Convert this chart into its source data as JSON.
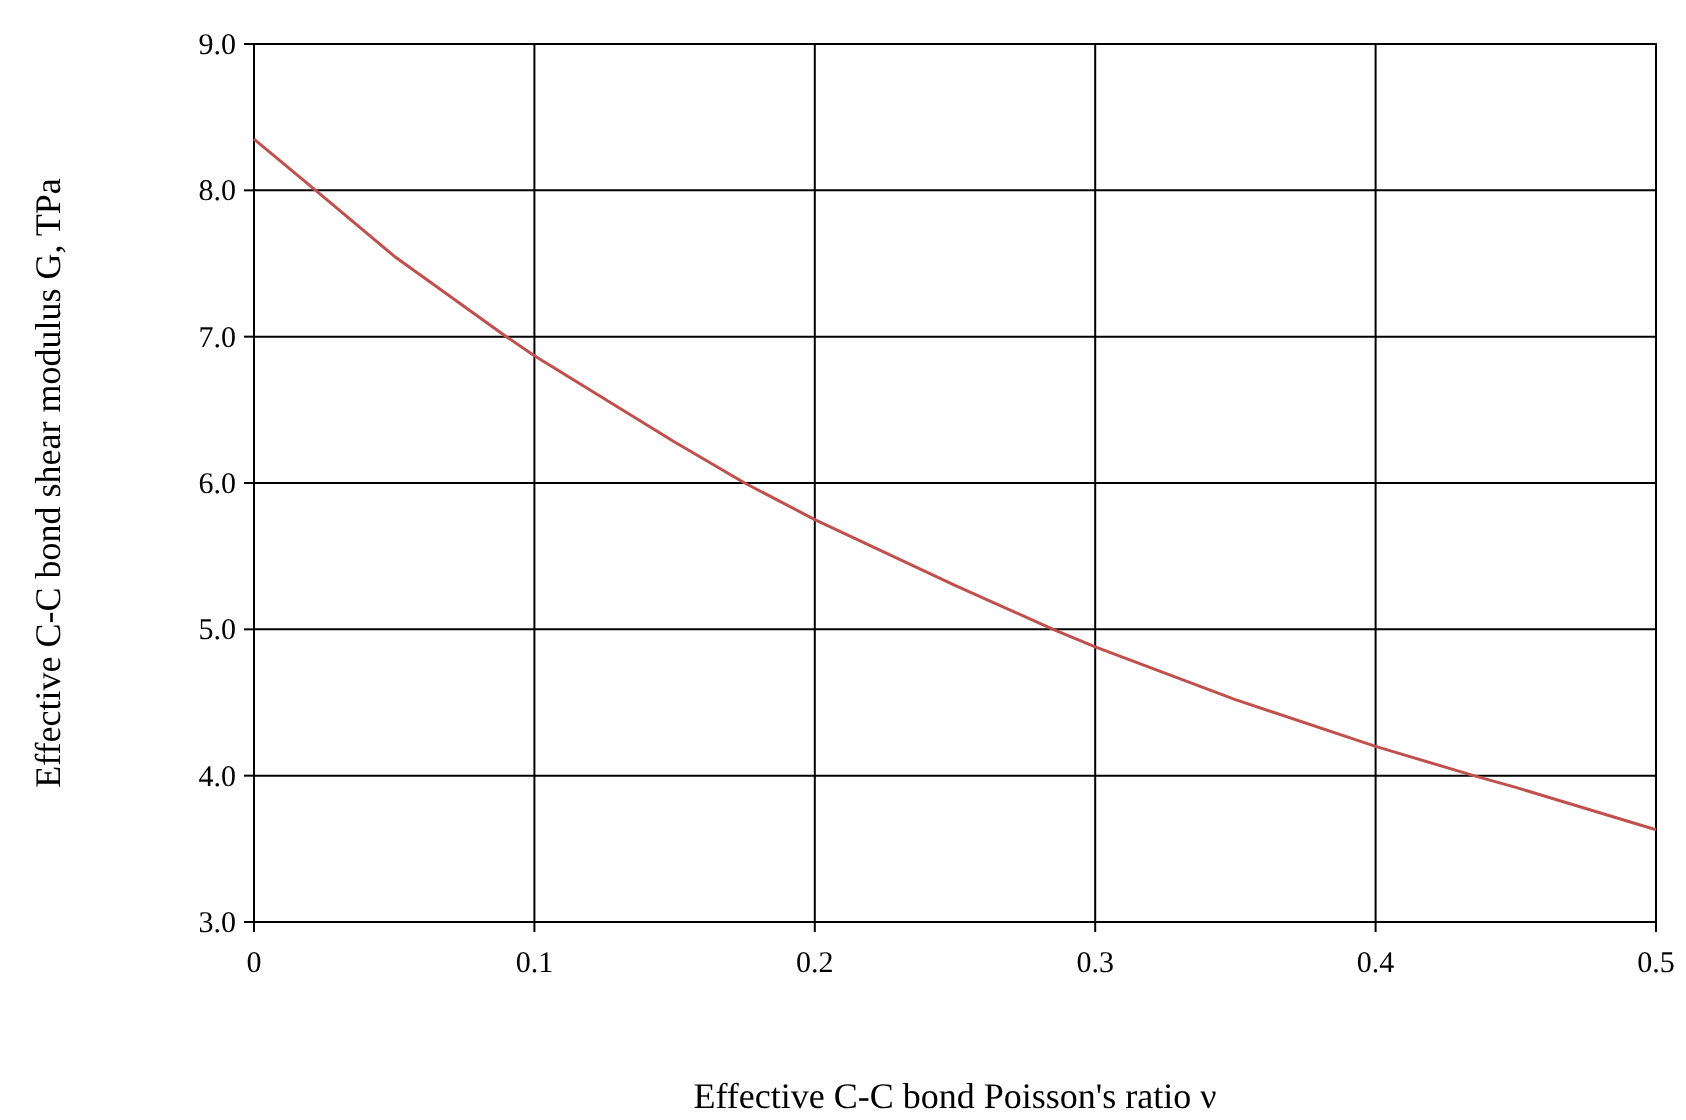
{
  "chart_data": {
    "type": "line",
    "xlabel": "Effective C-C bond Poisson's ratio ν",
    "ylabel": "Effective C-C bond shear modulus G, TPa",
    "x": [
      0,
      0.022,
      0.05,
      0.09,
      0.1,
      0.15,
      0.175,
      0.2,
      0.25,
      0.285,
      0.3,
      0.35,
      0.4,
      0.435,
      0.45,
      0.5
    ],
    "series": [
      {
        "color": "#c0504d",
        "values": [
          8.35,
          8.0,
          7.55,
          7.0,
          6.87,
          6.28,
          6.0,
          5.75,
          5.3,
          5.0,
          4.88,
          4.52,
          4.2,
          4.0,
          3.92,
          3.63
        ]
      }
    ],
    "xlim": [
      0,
      0.5
    ],
    "xticks": [
      0,
      0.1,
      0.2,
      0.3,
      0.4,
      0.5
    ],
    "ylim": [
      3,
      9
    ],
    "yticks": [
      {
        "value": 3,
        "label": "3.0"
      },
      {
        "value": 4,
        "label": "4.0"
      },
      {
        "value": 5,
        "label": "5.0"
      },
      {
        "value": 6,
        "label": "6.0"
      },
      {
        "value": 7,
        "label": "7.0"
      },
      {
        "value": 8,
        "label": "8.0"
      },
      {
        "value": 9,
        "label": "9.0"
      }
    ],
    "grid": true,
    "marker": "none",
    "line_style": "solid"
  }
}
